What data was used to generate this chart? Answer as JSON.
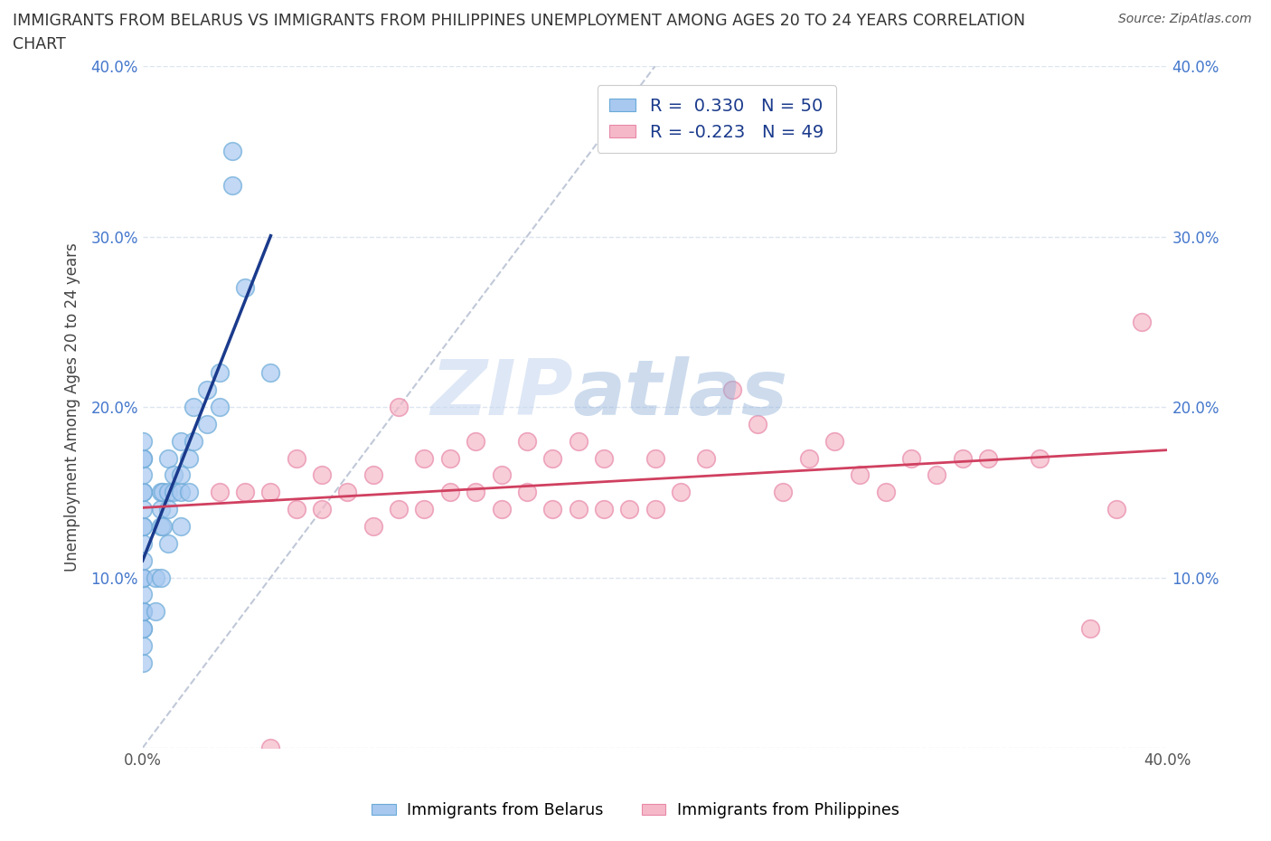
{
  "title_line1": "IMMIGRANTS FROM BELARUS VS IMMIGRANTS FROM PHILIPPINES UNEMPLOYMENT AMONG AGES 20 TO 24 YEARS CORRELATION",
  "title_line2": "CHART",
  "source": "Source: ZipAtlas.com",
  "ylabel": "Unemployment Among Ages 20 to 24 years",
  "xlim": [
    0.0,
    0.4
  ],
  "ylim": [
    0.0,
    0.4
  ],
  "xticks": [
    0.0,
    0.1,
    0.2,
    0.3,
    0.4
  ],
  "yticks": [
    0.0,
    0.1,
    0.2,
    0.3,
    0.4
  ],
  "xticklabels": [
    "0.0%",
    "",
    "",
    "",
    "40.0%"
  ],
  "yticklabels_left": [
    "",
    "10.0%",
    "20.0%",
    "30.0%",
    "40.0%"
  ],
  "yticklabels_right": [
    "",
    "10.0%",
    "20.0%",
    "30.0%",
    "40.0%"
  ],
  "belarus_color": "#a8c8f0",
  "belarus_edge_color": "#6aaad8",
  "philippines_color": "#f5b8c8",
  "philippines_edge_color": "#e888a8",
  "belarus_line_color": "#1a3a8c",
  "philippines_line_color": "#d04060",
  "diag_line_color": "#c0c8d8",
  "R_belarus": 0.33,
  "N_belarus": 50,
  "R_philippines": -0.223,
  "N_philippines": 49,
  "belarus_x": [
    0.0,
    0.0,
    0.0,
    0.0,
    0.0,
    0.0,
    0.0,
    0.0,
    0.0,
    0.0,
    0.0,
    0.0,
    0.0,
    0.0,
    0.0,
    0.0,
    0.0,
    0.0,
    0.0,
    0.0,
    0.005,
    0.005,
    0.007,
    0.007,
    0.007,
    0.007,
    0.008,
    0.008,
    0.01,
    0.01,
    0.01,
    0.01,
    0.012,
    0.012,
    0.015,
    0.015,
    0.015,
    0.015,
    0.018,
    0.018,
    0.02,
    0.02,
    0.025,
    0.025,
    0.03,
    0.03,
    0.035,
    0.035,
    0.04,
    0.05
  ],
  "belarus_y": [
    0.05,
    0.06,
    0.07,
    0.07,
    0.08,
    0.08,
    0.09,
    0.1,
    0.1,
    0.11,
    0.12,
    0.13,
    0.13,
    0.14,
    0.15,
    0.15,
    0.16,
    0.17,
    0.17,
    0.18,
    0.08,
    0.1,
    0.1,
    0.13,
    0.14,
    0.15,
    0.13,
    0.15,
    0.12,
    0.14,
    0.15,
    0.17,
    0.15,
    0.16,
    0.13,
    0.15,
    0.16,
    0.18,
    0.15,
    0.17,
    0.18,
    0.2,
    0.19,
    0.21,
    0.2,
    0.22,
    0.33,
    0.35,
    0.27,
    0.22
  ],
  "philippines_x": [
    0.03,
    0.04,
    0.05,
    0.05,
    0.06,
    0.06,
    0.07,
    0.07,
    0.08,
    0.09,
    0.09,
    0.1,
    0.1,
    0.11,
    0.11,
    0.12,
    0.12,
    0.13,
    0.13,
    0.14,
    0.14,
    0.15,
    0.15,
    0.16,
    0.16,
    0.17,
    0.17,
    0.18,
    0.18,
    0.19,
    0.2,
    0.2,
    0.21,
    0.22,
    0.23,
    0.24,
    0.25,
    0.26,
    0.27,
    0.28,
    0.29,
    0.3,
    0.31,
    0.32,
    0.33,
    0.35,
    0.37,
    0.38,
    0.39
  ],
  "philippines_y": [
    0.15,
    0.15,
    0.0,
    0.15,
    0.14,
    0.17,
    0.14,
    0.16,
    0.15,
    0.13,
    0.16,
    0.14,
    0.2,
    0.14,
    0.17,
    0.15,
    0.17,
    0.15,
    0.18,
    0.14,
    0.16,
    0.15,
    0.18,
    0.14,
    0.17,
    0.14,
    0.18,
    0.14,
    0.17,
    0.14,
    0.14,
    0.17,
    0.15,
    0.17,
    0.21,
    0.19,
    0.15,
    0.17,
    0.18,
    0.16,
    0.15,
    0.17,
    0.16,
    0.17,
    0.17,
    0.17,
    0.07,
    0.14,
    0.25
  ],
  "watermark_zip": "ZIP",
  "watermark_atlas": "atlas",
  "background_color": "#ffffff",
  "grid_color": "#dde5f0"
}
